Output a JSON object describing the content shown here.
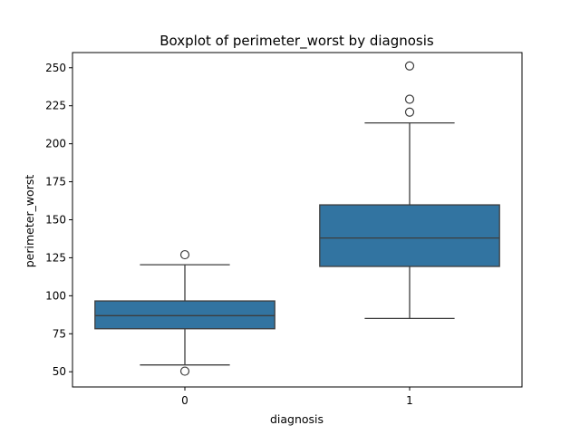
{
  "chart_data": {
    "type": "boxplot",
    "title": "Boxplot of perimeter_worst by diagnosis",
    "xlabel": "diagnosis",
    "ylabel": "perimeter_worst",
    "categories": [
      "0",
      "1"
    ],
    "ylim": [
      40,
      260
    ],
    "yticks": [
      50,
      75,
      100,
      125,
      150,
      175,
      200,
      225,
      250
    ],
    "box_color": "#3274a1",
    "line_color": "#3d3d3d",
    "grid": false,
    "boxes": [
      {
        "category": "0",
        "whisker_low": 54.5,
        "q1": 78.3,
        "median": 86.9,
        "q3": 96.6,
        "whisker_high": 120.4,
        "outliers": [
          127.0,
          50.4
        ]
      },
      {
        "category": "1",
        "whisker_low": 85.1,
        "q1": 119.3,
        "median": 138.0,
        "q3": 159.8,
        "whisker_high": 213.7,
        "outliers": [
          251.2,
          229.3,
          220.8
        ]
      }
    ]
  }
}
